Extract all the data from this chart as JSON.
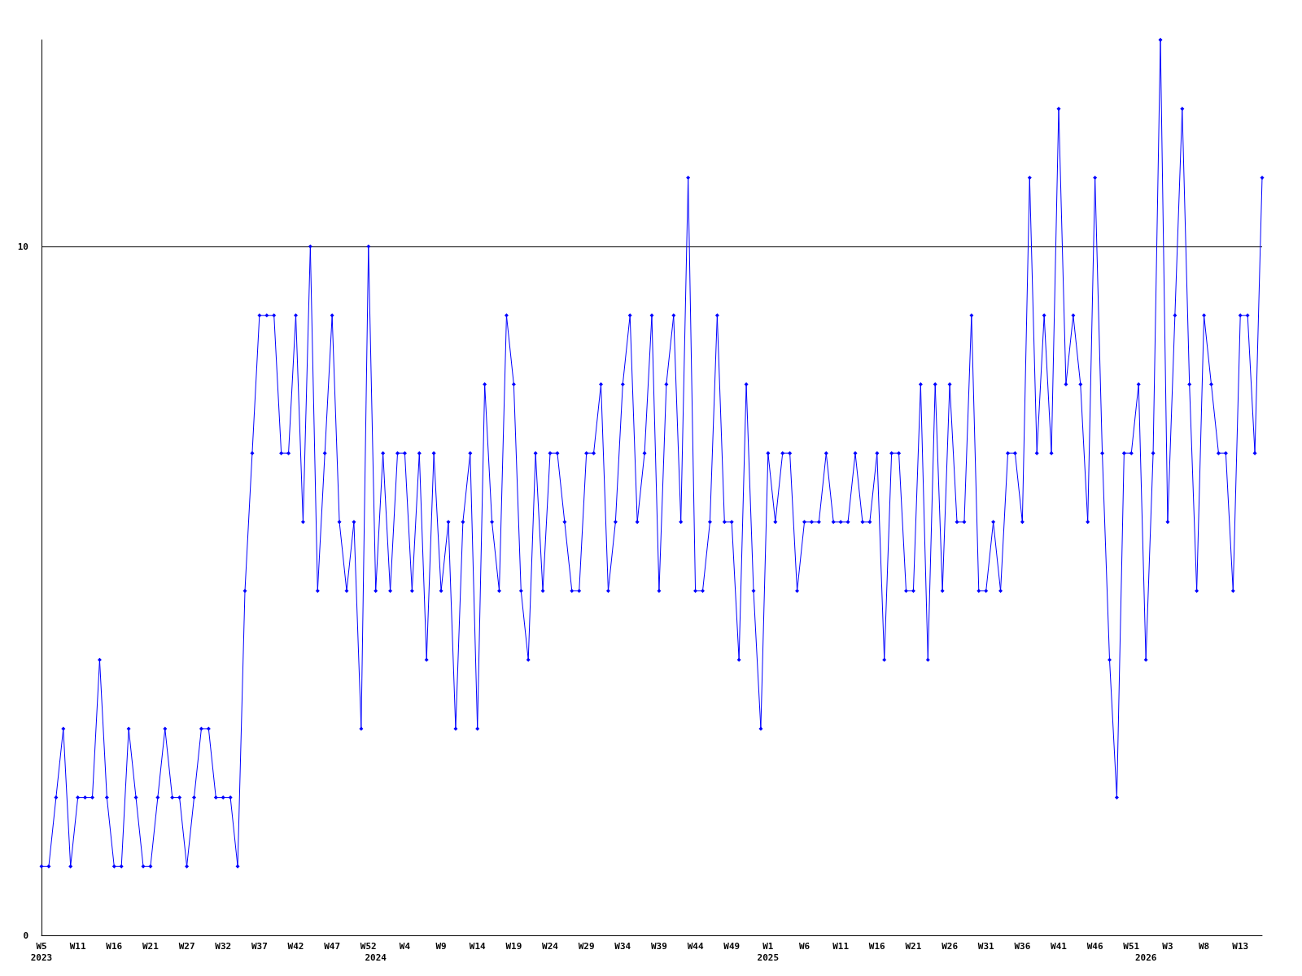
{
  "chart_data": {
    "type": "line",
    "categories": [
      "W5\n2023",
      null,
      null,
      null,
      null,
      "W11",
      null,
      null,
      null,
      null,
      "W16",
      null,
      null,
      null,
      null,
      "W21",
      null,
      null,
      null,
      null,
      "W27",
      null,
      null,
      null,
      null,
      "W32",
      null,
      null,
      null,
      null,
      "W37",
      null,
      null,
      null,
      null,
      "W42",
      null,
      null,
      null,
      null,
      "W47",
      null,
      null,
      null,
      null,
      "W52",
      "\n2024",
      null,
      null,
      null,
      "W4",
      null,
      null,
      null,
      null,
      "W9",
      null,
      null,
      null,
      null,
      "W14",
      null,
      null,
      null,
      null,
      "W19",
      null,
      null,
      null,
      null,
      "W24",
      null,
      null,
      null,
      null,
      "W29",
      null,
      null,
      null,
      null,
      "W34",
      null,
      null,
      null,
      null,
      "W39",
      null,
      null,
      null,
      null,
      "W44",
      null,
      null,
      null,
      null,
      "W49",
      null,
      null,
      null,
      null,
      "W1\n2025",
      null,
      null,
      null,
      null,
      "W6",
      null,
      null,
      null,
      null,
      "W11",
      null,
      null,
      null,
      null,
      "W16",
      null,
      null,
      null,
      null,
      "W21",
      null,
      null,
      null,
      null,
      "W26",
      null,
      null,
      null,
      null,
      "W31",
      null,
      null,
      null,
      null,
      "W36",
      null,
      null,
      null,
      null,
      "W41",
      null,
      null,
      null,
      null,
      "W46",
      null,
      null,
      null,
      null,
      "W51",
      null,
      "\n2026",
      null,
      null,
      "W3",
      null,
      null,
      null,
      null,
      "W8",
      null,
      null,
      null,
      null,
      "W13",
      null,
      null,
      null
    ],
    "series": [
      {
        "color": "#0000ff",
        "values": [
          1,
          1,
          2,
          3,
          1,
          2,
          2,
          2,
          4,
          2,
          1,
          1,
          3,
          2,
          1,
          1,
          2,
          3,
          2,
          2,
          1,
          2,
          3,
          3,
          2,
          2,
          2,
          1,
          5,
          7,
          9,
          9,
          9,
          7,
          7,
          9,
          6,
          10,
          5,
          7,
          9,
          6,
          5,
          6,
          3,
          10,
          5,
          7,
          5,
          7,
          7,
          5,
          7,
          4,
          7,
          5,
          6,
          3,
          6,
          7,
          3,
          8,
          6,
          5,
          9,
          8,
          5,
          4,
          7,
          5,
          7,
          7,
          6,
          5,
          5,
          7,
          7,
          8,
          5,
          6,
          8,
          9,
          6,
          7,
          9,
          5,
          8,
          9,
          6,
          11,
          5,
          5,
          6,
          9,
          6,
          6,
          4,
          8,
          5,
          3,
          7,
          6,
          7,
          7,
          5,
          6,
          6,
          6,
          7,
          6,
          6,
          6,
          7,
          6,
          6,
          7,
          4,
          7,
          7,
          5,
          5,
          8,
          4,
          8,
          5,
          8,
          6,
          6,
          9,
          5,
          5,
          6,
          5,
          7,
          7,
          6,
          11,
          7,
          9,
          7,
          12,
          8,
          9,
          8,
          6,
          11,
          7,
          4,
          2,
          7,
          7,
          8,
          4,
          7,
          13,
          6,
          9,
          12,
          8,
          5,
          9,
          8,
          7,
          7,
          5,
          9,
          9,
          7,
          11
        ]
      }
    ],
    "ylim": [
      0,
      13
    ],
    "yticks": [
      0,
      10
    ],
    "grid": "y",
    "marker": "diamond",
    "line_style": "solid"
  }
}
